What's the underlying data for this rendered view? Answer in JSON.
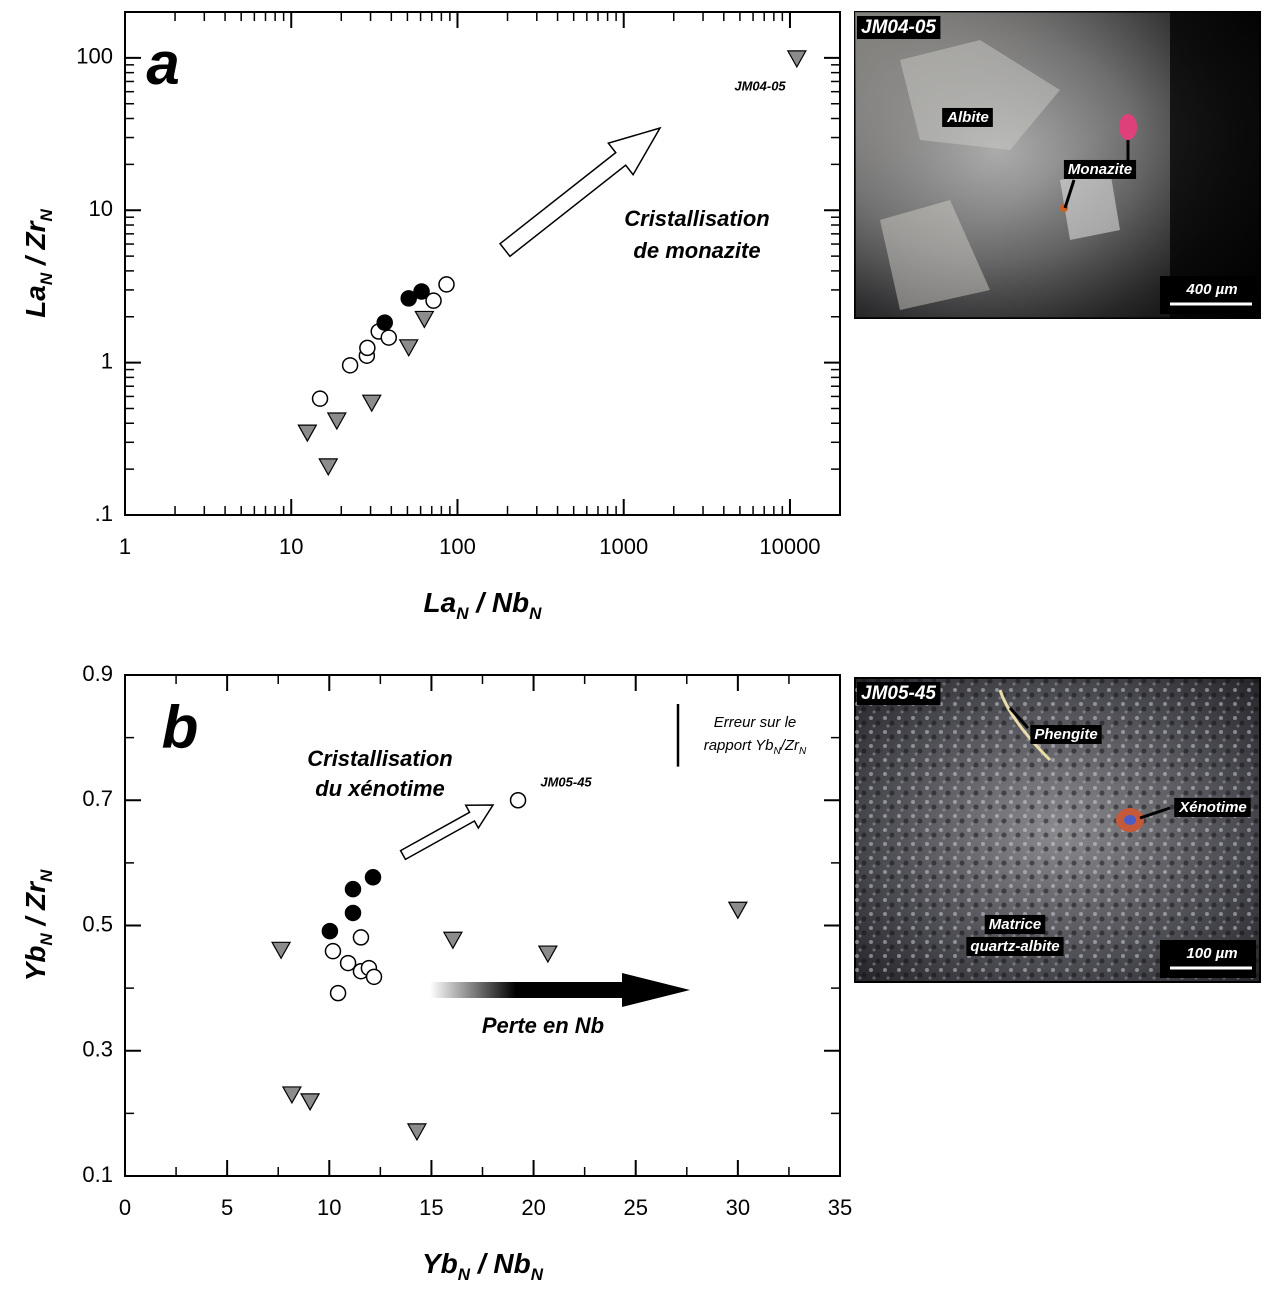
{
  "chart_data": [
    {
      "type": "scatter",
      "panel_label": "a",
      "xscale": "log",
      "yscale": "log",
      "xlabel": [
        "La",
        "N",
        " / Nb",
        "N"
      ],
      "ylabel": [
        "La",
        "N",
        " / Zr",
        "N"
      ],
      "xlim": [
        1,
        20000
      ],
      "ylim": [
        0.1,
        200
      ],
      "xticks": [
        1,
        10,
        100,
        1000,
        10000
      ],
      "yticks": [
        {
          "value": 0.1,
          "label": ".1"
        },
        1,
        10,
        100
      ],
      "series": [
        {
          "marker": "circle",
          "color": "#ffffff",
          "x": [
            14.9,
            22.6,
            28.5,
            28.7,
            33.6,
            38.6,
            71.8,
            85.9
          ],
          "values": [
            0.58,
            0.96,
            1.11,
            1.25,
            1.6,
            1.46,
            2.55,
            3.26
          ]
        },
        {
          "marker": "circle",
          "color": "#000000",
          "x": [
            36.5,
            50.9,
            60.8
          ],
          "values": [
            1.83,
            2.64,
            2.93
          ]
        },
        {
          "marker": "triangle",
          "color": "#8c8c8c",
          "x": [
            12.5,
            18.8,
            16.7,
            30.5,
            50.9,
            63.2,
            11000
          ],
          "values": [
            0.35,
            0.42,
            0.21,
            0.55,
            1.27,
            1.95,
            100
          ]
        }
      ],
      "sample_label": "JM04-05",
      "arrow_label": [
        "Cristallisation",
        "de monazite"
      ],
      "photo": {
        "sample": "JM04-05",
        "labels": [
          "Albite",
          "Monazite"
        ],
        "scale": "400 µm"
      }
    },
    {
      "type": "scatter",
      "panel_label": "b",
      "xscale": "linear",
      "yscale": "linear",
      "xlabel": [
        "Yb",
        "N",
        " / Nb",
        "N"
      ],
      "ylabel": [
        "Yb",
        "N",
        " / Zr",
        "N"
      ],
      "xlim": [
        0,
        35
      ],
      "ylim": [
        0.1,
        0.9
      ],
      "xticks": [
        0,
        5,
        10,
        15,
        20,
        25,
        30,
        35
      ],
      "yticks": [
        0.1,
        0.3,
        0.5,
        0.7,
        0.9
      ],
      "series": [
        {
          "marker": "circle",
          "color": "#ffffff",
          "x": [
            19.24,
            10.18,
            10.43,
            10.92,
            11.55,
            11.55,
            11.94,
            12.19
          ],
          "values": [
            0.7,
            0.459,
            0.392,
            0.44,
            0.481,
            0.427,
            0.432,
            0.418
          ]
        },
        {
          "marker": "circle",
          "color": "#000000",
          "x": [
            10.03,
            11.16,
            11.16,
            12.14
          ],
          "values": [
            0.491,
            0.558,
            0.52,
            0.577
          ]
        },
        {
          "marker": "triangle",
          "color": "#8c8c8c",
          "x": [
            7.64,
            8.17,
            9.06,
            14.29,
            16.05,
            20.7,
            30.0
          ],
          "values": [
            0.462,
            0.231,
            0.22,
            0.172,
            0.478,
            0.456,
            0.526
          ]
        }
      ],
      "sample_label": "JM05-45",
      "arrow_label": [
        "Cristallisation",
        "du xénotime"
      ],
      "trend_label": "Perte en Nb",
      "error_bar": 0.1,
      "error_label": [
        "Erreur sur le",
        [
          "rapport Yb",
          "N",
          "/Zr",
          "N"
        ]
      ],
      "photo": {
        "sample": "JM05-45",
        "labels": [
          "Phengite",
          "Xénotime",
          "Matrice",
          "quartz-albite"
        ],
        "scale": "100 µm"
      }
    }
  ]
}
